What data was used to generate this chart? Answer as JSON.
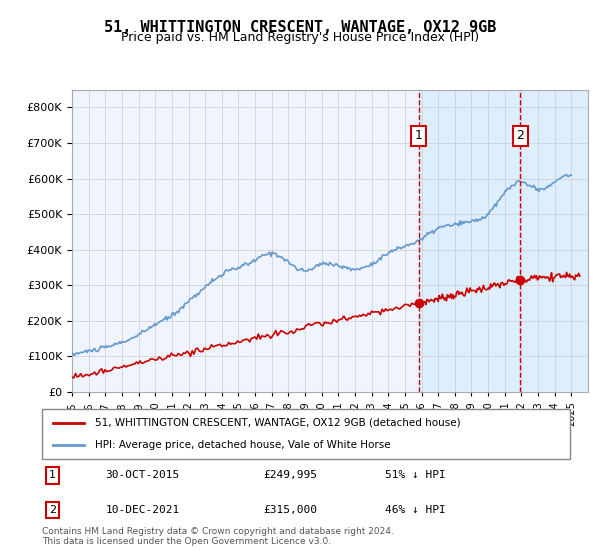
{
  "title": "51, WHITTINGTON CRESCENT, WANTAGE, OX12 9GB",
  "subtitle": "Price paid vs. HM Land Registry's House Price Index (HPI)",
  "legend_line1": "51, WHITTINGTON CRESCENT, WANTAGE, OX12 9GB (detached house)",
  "legend_line2": "HPI: Average price, detached house, Vale of White Horse",
  "footer": "Contains HM Land Registry data © Crown copyright and database right 2024.\nThis data is licensed under the Open Government Licence v3.0.",
  "marker1_label": "1",
  "marker1_date": "30-OCT-2015",
  "marker1_price": "£249,995",
  "marker1_pct": "51% ↓ HPI",
  "marker2_label": "2",
  "marker2_date": "10-DEC-2021",
  "marker2_price": "£315,000",
  "marker2_pct": "46% ↓ HPI",
  "marker1_x": 2015.83,
  "marker2_x": 2021.94,
  "marker1_y": 249995,
  "marker2_y": 315000,
  "ylim": [
    0,
    850000
  ],
  "xlim": [
    1995,
    2026
  ],
  "red_color": "#cc0000",
  "blue_color": "#6699cc",
  "background_color": "#ffffff",
  "plot_bg_color": "#f0f4ff",
  "shade_color": "#ddeeff",
  "grid_color": "#cccccc"
}
